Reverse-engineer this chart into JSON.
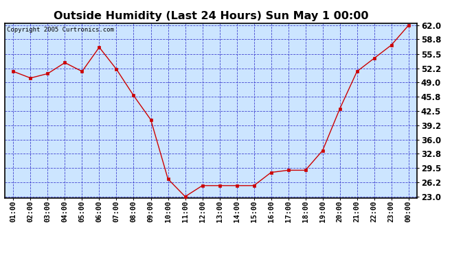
{
  "title": "Outside Humidity (Last 24 Hours) Sun May 1 00:00",
  "copyright": "Copyright 2005 Curtronics.com",
  "x_labels": [
    "01:00",
    "02:00",
    "03:00",
    "04:00",
    "05:00",
    "06:00",
    "07:00",
    "08:00",
    "09:00",
    "10:00",
    "11:00",
    "12:00",
    "13:00",
    "14:00",
    "15:00",
    "16:00",
    "17:00",
    "18:00",
    "19:00",
    "20:00",
    "21:00",
    "22:00",
    "23:00",
    "00:00"
  ],
  "y_values": [
    51.5,
    50.0,
    51.0,
    53.5,
    51.5,
    57.0,
    52.0,
    46.0,
    40.5,
    27.0,
    23.0,
    25.5,
    25.5,
    25.5,
    25.5,
    28.5,
    29.0,
    29.0,
    33.5,
    43.0,
    51.5,
    54.5,
    57.5,
    62.0
  ],
  "y_ticks": [
    23.0,
    26.2,
    29.5,
    32.8,
    36.0,
    39.2,
    42.5,
    45.8,
    49.0,
    52.2,
    55.5,
    58.8,
    62.0
  ],
  "y_min": 23.0,
  "y_max": 62.0,
  "line_color": "#cc0000",
  "marker_color": "#cc0000",
  "bg_color": "#cce5ff",
  "grid_color": "#3333cc",
  "border_color": "#000000",
  "fig_bg_color": "#ffffff",
  "title_fontsize": 11.5,
  "copyright_fontsize": 6.5,
  "tick_fontsize": 7.5,
  "y_tick_fontsize": 8.5
}
